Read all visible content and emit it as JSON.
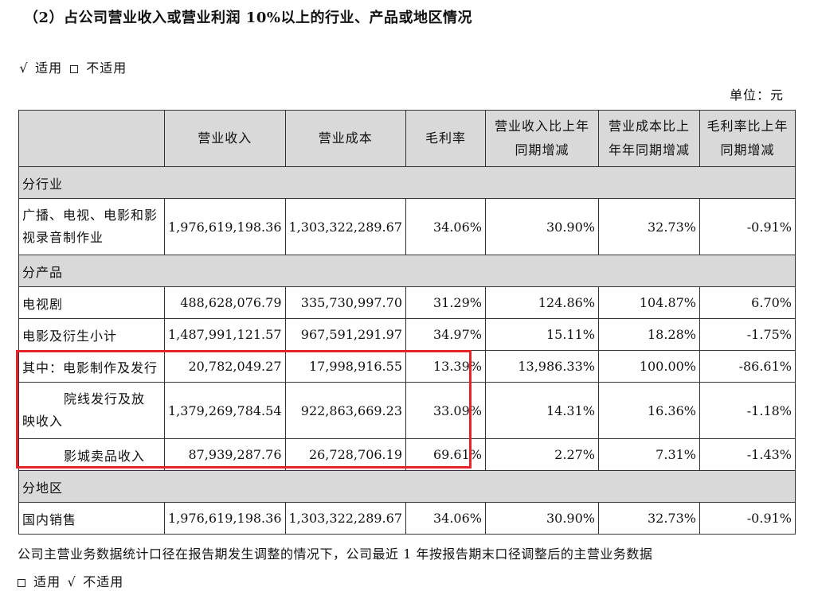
{
  "heading": "（2）占公司营业收入或营业利润 10%以上的行业、产品或地区情况",
  "applicable_top": {
    "check": "√",
    "applicable": "适用",
    "not_applicable": "不适用"
  },
  "unit": "单位：元",
  "table": {
    "headers": [
      "",
      "营业收入",
      "营业成本",
      "毛利率",
      "营业收入比上年同期增减",
      "营业成本比上年年同期增减",
      "毛利率比上年同期增减"
    ],
    "sections": {
      "industry": "分行业",
      "product": "分产品",
      "region": "分地区"
    },
    "industry_rows": [
      {
        "label": "广播、电视、电影和影视录音制作业",
        "values": [
          "1,976,619,198.36",
          "1,303,322,289.67",
          "34.06%",
          "30.90%",
          "32.73%",
          "-0.91%"
        ]
      }
    ],
    "product_rows": [
      {
        "label": "电视剧",
        "values": [
          "488,628,076.79",
          "335,730,997.70",
          "31.29%",
          "124.86%",
          "104.87%",
          "6.70%"
        ]
      },
      {
        "label": "电影及衍生小计",
        "values": [
          "1,487,991,121.57",
          "967,591,291.97",
          "34.97%",
          "15.11%",
          "18.28%",
          "-1.75%"
        ]
      },
      {
        "label": "其中：电影制作及发行",
        "values": [
          "20,782,049.27",
          "17,998,916.55",
          "13.39%",
          "13,986.33%",
          "100.00%",
          "-86.61%"
        ]
      },
      {
        "label_line1": "院线发行及放",
        "label_line2": "映收入",
        "values": [
          "1,379,269,784.54",
          "922,863,669.23",
          "33.09%",
          "14.31%",
          "16.36%",
          "-1.18%"
        ]
      },
      {
        "label": "影城卖品收入",
        "values": [
          "87,939,287.76",
          "26,728,706.19",
          "69.61%",
          "2.27%",
          "7.31%",
          "-1.43%"
        ]
      }
    ],
    "region_rows": [
      {
        "label": "国内销售",
        "values": [
          "1,976,619,198.36",
          "1,303,322,289.67",
          "34.06%",
          "30.90%",
          "32.73%",
          "-0.91%"
        ]
      }
    ]
  },
  "footnote": "公司主营业务数据统计口径在报告期发生调整的情况下，公司最近 1 年按报告期末口径调整后的主营业务数据",
  "applicable_bottom": {
    "check": "√",
    "applicable": "适用",
    "not_applicable": "不适用"
  }
}
